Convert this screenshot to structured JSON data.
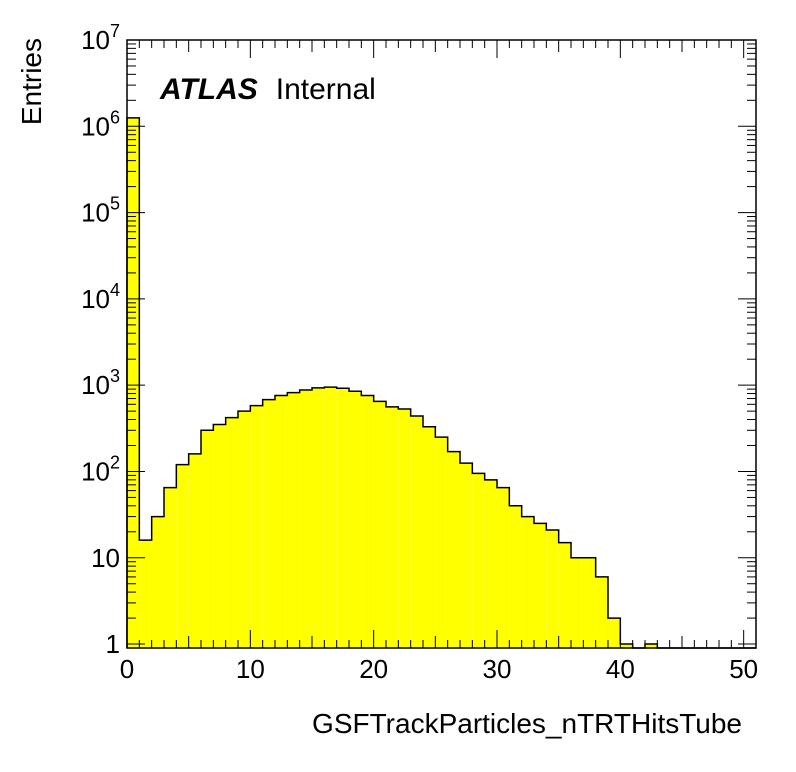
{
  "chart_data": {
    "type": "histogram",
    "xlabel": "GSFTrackParticles_nTRTHitsTube",
    "ylabel": "Entries",
    "xlim": [
      0,
      51
    ],
    "ylim": [
      0.9,
      10000000
    ],
    "yscale": "log",
    "fill_color": "#ffff00",
    "line_color": "#000000",
    "bin_width": 1,
    "bins_x": [
      0,
      1,
      2,
      3,
      4,
      5,
      6,
      7,
      8,
      9,
      10,
      11,
      12,
      13,
      14,
      15,
      16,
      17,
      18,
      19,
      20,
      21,
      22,
      23,
      24,
      25,
      26,
      27,
      28,
      29,
      30,
      31,
      32,
      33,
      34,
      35,
      36,
      37,
      38,
      39,
      40,
      41,
      42,
      43,
      44,
      45,
      46,
      47,
      48,
      49,
      50
    ],
    "values": [
      1250000,
      16,
      30,
      65,
      120,
      160,
      300,
      350,
      420,
      500,
      580,
      680,
      760,
      820,
      880,
      930,
      950,
      920,
      850,
      760,
      650,
      560,
      530,
      440,
      330,
      250,
      170,
      125,
      95,
      80,
      65,
      40,
      30,
      25,
      21,
      15,
      10,
      10,
      6,
      2,
      1,
      0,
      1,
      0,
      0,
      0,
      0,
      0,
      0,
      0,
      0
    ],
    "x_ticks": [
      "0",
      "10",
      "20",
      "30",
      "40",
      "50"
    ],
    "y_ticks": [
      {
        "value": 1,
        "label": "1"
      },
      {
        "value": 10,
        "label": "10"
      },
      {
        "value": 100,
        "label": "10",
        "exp": "2"
      },
      {
        "value": 1000,
        "label": "10",
        "exp": "3"
      },
      {
        "value": 10000,
        "label": "10",
        "exp": "4"
      },
      {
        "value": 100000,
        "label": "10",
        "exp": "5"
      },
      {
        "value": 1000000,
        "label": "10",
        "exp": "6"
      },
      {
        "value": 10000000,
        "label": "10",
        "exp": "7"
      }
    ],
    "grid": false,
    "annotation": {
      "bold": "ATLAS",
      "text": "Internal"
    }
  }
}
